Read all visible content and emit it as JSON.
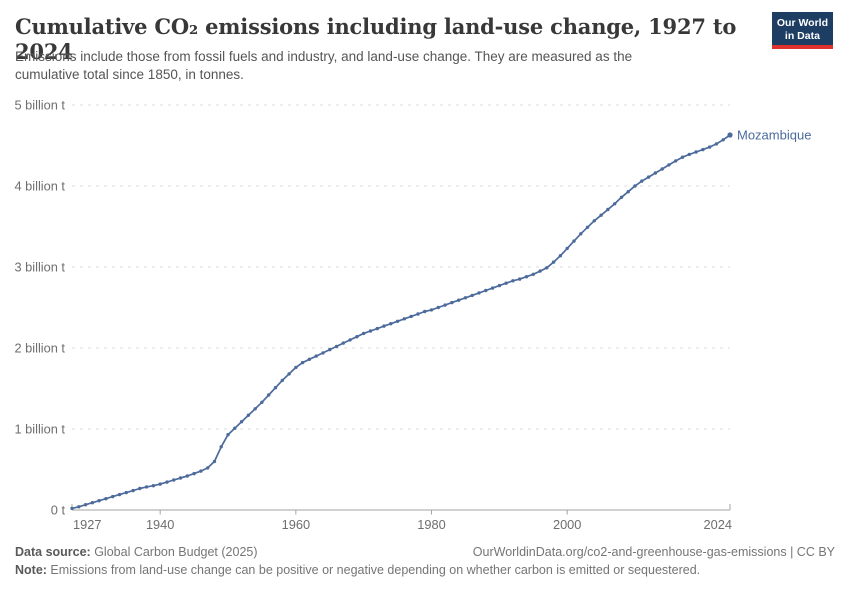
{
  "header": {
    "title": "Cumulative CO₂ emissions including land-use change, 1927 to 2024",
    "subtitle": "Emissions include those from fossil fuels and industry, and land-use change. They are measured as the cumulative total since 1850, in tonnes.",
    "logo": {
      "line1": "Our World",
      "line2": "in Data",
      "bg_color": "#1d3d63",
      "accent_color": "#e0322d"
    }
  },
  "chart_data": {
    "type": "line",
    "title": "Cumulative CO₂ emissions including land-use change, 1927 to 2024",
    "xlabel": "",
    "ylabel": "",
    "unit": "billion t",
    "xlim": [
      1927,
      2024
    ],
    "ylim": [
      0,
      5
    ],
    "grid": "dashed horizontal gridlines",
    "legend_position": "end-of-line label",
    "x_ticks": [
      1927,
      1940,
      1960,
      1980,
      2000,
      2024
    ],
    "y_ticks": [
      {
        "value": 0,
        "label": "0 t"
      },
      {
        "value": 1,
        "label": "1 billion t"
      },
      {
        "value": 2,
        "label": "2 billion t"
      },
      {
        "value": 3,
        "label": "3 billion t"
      },
      {
        "value": 4,
        "label": "4 billion t"
      },
      {
        "value": 5,
        "label": "5 billion t"
      }
    ],
    "series": [
      {
        "name": "Mozambique",
        "color": "#4c6a9c",
        "marker": "dot",
        "years": [
          1927,
          1928,
          1929,
          1930,
          1931,
          1932,
          1933,
          1934,
          1935,
          1936,
          1937,
          1938,
          1939,
          1940,
          1941,
          1942,
          1943,
          1944,
          1945,
          1946,
          1947,
          1948,
          1949,
          1950,
          1951,
          1952,
          1953,
          1954,
          1955,
          1956,
          1957,
          1958,
          1959,
          1960,
          1961,
          1962,
          1963,
          1964,
          1965,
          1966,
          1967,
          1968,
          1969,
          1970,
          1971,
          1972,
          1973,
          1974,
          1975,
          1976,
          1977,
          1978,
          1979,
          1980,
          1981,
          1982,
          1983,
          1984,
          1985,
          1986,
          1987,
          1988,
          1989,
          1990,
          1991,
          1992,
          1993,
          1994,
          1995,
          1996,
          1997,
          1998,
          1999,
          2000,
          2001,
          2002,
          2003,
          2004,
          2005,
          2006,
          2007,
          2008,
          2009,
          2010,
          2011,
          2012,
          2013,
          2014,
          2015,
          2016,
          2017,
          2018,
          2019,
          2020,
          2021,
          2022,
          2023,
          2024
        ],
        "values": [
          0.02,
          0.04,
          0.065,
          0.09,
          0.115,
          0.14,
          0.165,
          0.19,
          0.215,
          0.24,
          0.265,
          0.285,
          0.3,
          0.32,
          0.345,
          0.37,
          0.395,
          0.42,
          0.45,
          0.48,
          0.52,
          0.6,
          0.78,
          0.93,
          1.01,
          1.09,
          1.17,
          1.25,
          1.33,
          1.42,
          1.51,
          1.6,
          1.68,
          1.76,
          1.82,
          1.86,
          1.9,
          1.94,
          1.98,
          2.02,
          2.06,
          2.1,
          2.14,
          2.18,
          2.21,
          2.24,
          2.27,
          2.3,
          2.33,
          2.36,
          2.39,
          2.42,
          2.45,
          2.47,
          2.5,
          2.53,
          2.56,
          2.59,
          2.62,
          2.65,
          2.68,
          2.71,
          2.74,
          2.77,
          2.8,
          2.83,
          2.85,
          2.88,
          2.91,
          2.95,
          2.99,
          3.06,
          3.14,
          3.23,
          3.32,
          3.41,
          3.49,
          3.57,
          3.64,
          3.71,
          3.78,
          3.86,
          3.93,
          4.0,
          4.06,
          4.11,
          4.16,
          4.21,
          4.26,
          4.31,
          4.355,
          4.39,
          4.42,
          4.45,
          4.48,
          4.52,
          4.57,
          4.63
        ]
      }
    ],
    "colors": {
      "gridline": "#dcdcdc",
      "axis": "#a3a3a3",
      "tick_label": "#6e6e6e"
    }
  },
  "footer": {
    "data_source_label": "Data source:",
    "data_source_value": " Global Carbon Budget (2025)",
    "url_text": "OurWorldinData.org/co2-and-greenhouse-gas-emissions | CC BY",
    "note_label": "Note:",
    "note_value": " Emissions from land-use change can be positive or negative depending on whether carbon is emitted or sequestered."
  }
}
